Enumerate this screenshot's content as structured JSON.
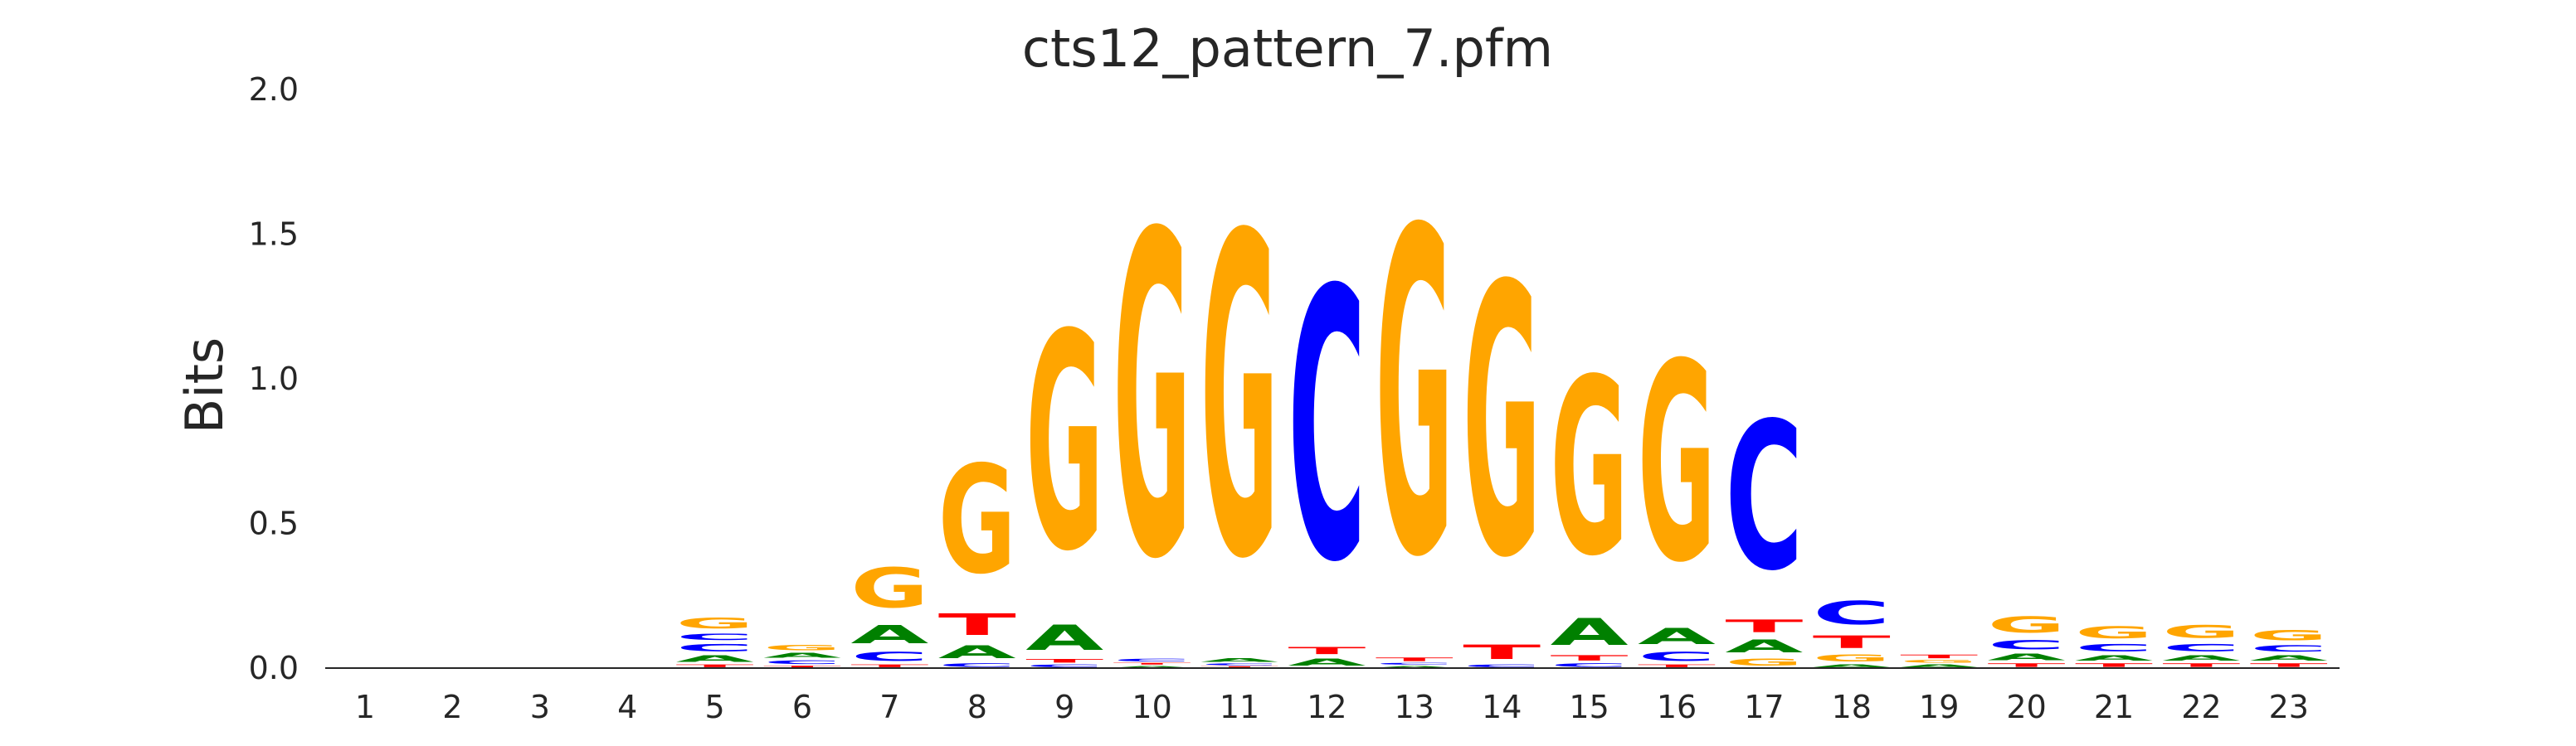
{
  "chart_data": {
    "type": "sequence-logo",
    "title": "cts12_pattern_7.pfm",
    "xlabel": "",
    "ylabel": "Bits",
    "ylim": [
      0,
      2.0
    ],
    "yticks": [
      "0.0",
      "0.5",
      "1.0",
      "1.5",
      "2.0"
    ],
    "grid": false,
    "colors": {
      "A": "#008000",
      "C": "#0000ff",
      "G": "#ffa500",
      "T": "#ff0000"
    },
    "positions": [
      {
        "pos": "1",
        "stack": []
      },
      {
        "pos": "2",
        "stack": []
      },
      {
        "pos": "3",
        "stack": []
      },
      {
        "pos": "4",
        "stack": []
      },
      {
        "pos": "5",
        "stack": [
          [
            "T",
            0.015
          ],
          [
            "A",
            0.035
          ],
          [
            "C",
            0.04
          ],
          [
            "C",
            0.035
          ],
          [
            "G",
            0.06
          ]
        ]
      },
      {
        "pos": "6",
        "stack": [
          [
            "T",
            0.01
          ],
          [
            "C",
            0.02
          ],
          [
            "A",
            0.025
          ],
          [
            "G",
            0.03
          ]
        ]
      },
      {
        "pos": "7",
        "stack": [
          [
            "T",
            0.015
          ],
          [
            "C",
            0.05
          ],
          [
            "A",
            0.1
          ],
          [
            "G",
            0.22
          ]
        ]
      },
      {
        "pos": "8",
        "stack": [
          [
            "C",
            0.02
          ],
          [
            "A",
            0.07
          ],
          [
            "T",
            0.12
          ],
          [
            "G",
            0.6
          ]
        ]
      },
      {
        "pos": "9",
        "stack": [
          [
            "C",
            0.015
          ],
          [
            "T",
            0.02
          ],
          [
            "A",
            0.14
          ],
          [
            "G",
            1.2
          ]
        ]
      },
      {
        "pos": "10",
        "stack": [
          [
            "A",
            0.01
          ],
          [
            "T",
            0.01
          ],
          [
            "C",
            0.015
          ],
          [
            "G",
            1.79
          ]
        ]
      },
      {
        "pos": "11",
        "stack": [
          [
            "T",
            0.008
          ],
          [
            "C",
            0.01
          ],
          [
            "A",
            0.02
          ],
          [
            "G",
            1.78
          ]
        ]
      },
      {
        "pos": "12",
        "stack": [
          [
            "A",
            0.04
          ],
          [
            "T",
            0.04
          ],
          [
            "C",
            1.5
          ]
        ]
      },
      {
        "pos": "13",
        "stack": [
          [
            "A",
            0.01
          ],
          [
            "C",
            0.01
          ],
          [
            "T",
            0.02
          ],
          [
            "G",
            1.8
          ]
        ]
      },
      {
        "pos": "14",
        "stack": [
          [
            "C",
            0.015
          ],
          [
            "T",
            0.08
          ],
          [
            "G",
            1.5
          ]
        ]
      },
      {
        "pos": "15",
        "stack": [
          [
            "C",
            0.02
          ],
          [
            "T",
            0.03
          ],
          [
            "A",
            0.15
          ],
          [
            "G",
            0.98
          ]
        ]
      },
      {
        "pos": "16",
        "stack": [
          [
            "T",
            0.015
          ],
          [
            "C",
            0.05
          ],
          [
            "A",
            0.09
          ],
          [
            "G",
            1.1
          ]
        ]
      },
      {
        "pos": "17",
        "stack": [
          [
            "G",
            0.04
          ],
          [
            "A",
            0.07
          ],
          [
            "T",
            0.07
          ],
          [
            "C",
            0.82
          ]
        ]
      },
      {
        "pos": "18",
        "stack": [
          [
            "A",
            0.015
          ],
          [
            "G",
            0.04
          ],
          [
            "T",
            0.07
          ],
          [
            "C",
            0.13
          ]
        ]
      },
      {
        "pos": "19",
        "stack": [
          [
            "A",
            0.015
          ],
          [
            "G",
            0.015
          ],
          [
            "T",
            0.02
          ]
        ]
      },
      {
        "pos": "20",
        "stack": [
          [
            "T",
            0.02
          ],
          [
            "A",
            0.035
          ],
          [
            "C",
            0.05
          ],
          [
            "G",
            0.09
          ]
        ]
      },
      {
        "pos": "21",
        "stack": [
          [
            "T",
            0.02
          ],
          [
            "A",
            0.03
          ],
          [
            "C",
            0.04
          ],
          [
            "G",
            0.065
          ]
        ]
      },
      {
        "pos": "22",
        "stack": [
          [
            "T",
            0.02
          ],
          [
            "A",
            0.03
          ],
          [
            "C",
            0.04
          ],
          [
            "G",
            0.07
          ]
        ]
      },
      {
        "pos": "23",
        "stack": [
          [
            "T",
            0.02
          ],
          [
            "A",
            0.03
          ],
          [
            "C",
            0.035
          ],
          [
            "G",
            0.055
          ]
        ]
      }
    ]
  }
}
